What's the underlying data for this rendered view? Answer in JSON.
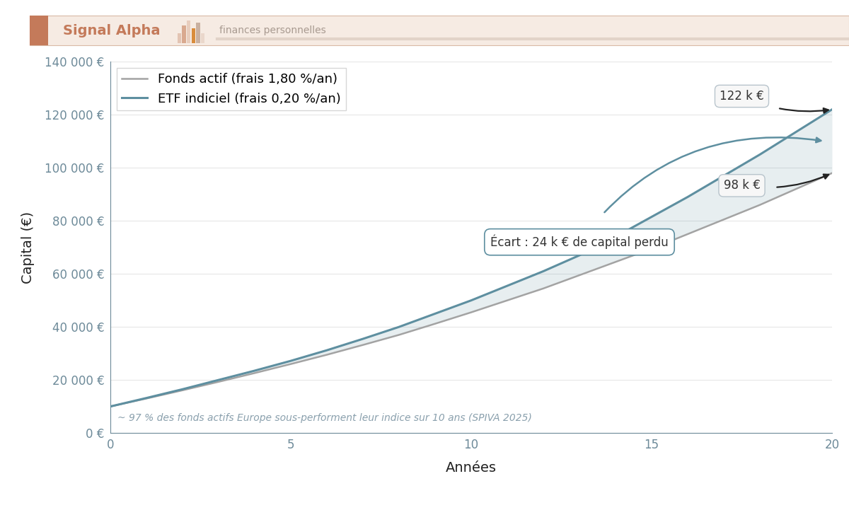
{
  "header": {
    "title": "Signal Alpha",
    "subtitle": "finances personnelles"
  },
  "chart_data": {
    "type": "line",
    "x_label": "Années",
    "y_label": "Capital (€)",
    "x": [
      0,
      1,
      2,
      3,
      4,
      5,
      6,
      7,
      8,
      9,
      10,
      11,
      12,
      13,
      14,
      15,
      16,
      17,
      18,
      19,
      20
    ],
    "series": [
      {
        "name": "Fonds actif (frais 1,80 %/an)",
        "color": "#a3a3a3",
        "values": [
          10000,
          13000,
          16100,
          19300,
          22600,
          26000,
          29500,
          33200,
          37000,
          41200,
          45500,
          50000,
          54500,
          59500,
          64500,
          69500,
          75000,
          80500,
          86000,
          92000,
          98000
        ]
      },
      {
        "name": "ETF indiciel (frais 0,20 %/an)",
        "color": "#5e8fa0",
        "values": [
          10000,
          13200,
          16500,
          20000,
          23500,
          27200,
          31200,
          35500,
          40000,
          45000,
          50000,
          55500,
          61000,
          67000,
          74000,
          81500,
          89000,
          97000,
          105000,
          113500,
          122000
        ]
      }
    ],
    "xlim": [
      0,
      20
    ],
    "xticks": [
      0,
      5,
      10,
      15,
      20
    ],
    "ylim": [
      0,
      140000
    ],
    "yticks": [
      {
        "value": 0,
        "label": "0 €"
      },
      {
        "value": 20000,
        "label": "20 000 €"
      },
      {
        "value": 40000,
        "label": "40 000 €"
      },
      {
        "value": 60000,
        "label": "60 000 €"
      },
      {
        "value": 80000,
        "label": "80 000 €"
      },
      {
        "value": 100000,
        "label": "100 000 €"
      },
      {
        "value": 120000,
        "label": "120 000 €"
      },
      {
        "value": 140000,
        "label": "140 000 €"
      }
    ],
    "grid": true,
    "legend": "upper left",
    "annotations": {
      "etf_end": "122 k €",
      "fund_end": "98 k €",
      "gap": "Écart : 24 k € de capital perdu"
    },
    "note": "~ 97 % des fonds actifs Europe sous-performent leur indice sur 10 ans (SPIVA 2025)"
  }
}
